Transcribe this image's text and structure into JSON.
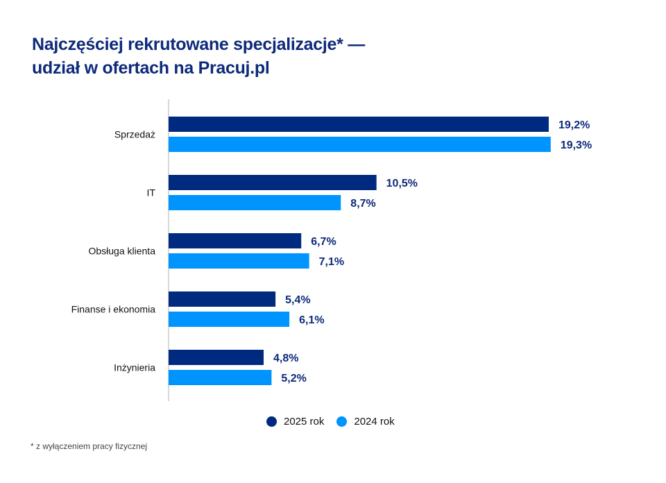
{
  "title_line1": "Najczęściej rekrutowane specjalizacje* —",
  "title_line2": "udział w ofertach na Pracuj.pl",
  "footnote": "* z wyłączeniem pracy fizycznej",
  "chart_data": {
    "type": "bar",
    "orientation": "horizontal",
    "title": "Najczęściej rekrutowane specjalizacje* — udział w ofertach na Pracuj.pl",
    "categories": [
      "Sprzedaż",
      "IT",
      "Obsługa klienta",
      "Finanse i ekonomia",
      "Inżynieria"
    ],
    "series": [
      {
        "name": "2025 rok",
        "color": "#002a80",
        "values": [
          19.2,
          10.5,
          6.7,
          5.4,
          4.8
        ],
        "labels": [
          "19,2%",
          "10,5%",
          "6,7%",
          "5,4%",
          "4,8%"
        ]
      },
      {
        "name": "2024 rok",
        "color": "#0094ff",
        "values": [
          19.3,
          8.7,
          7.1,
          6.1,
          5.2
        ],
        "labels": [
          "19,3%",
          "8,7%",
          "7,1%",
          "6,1%",
          "5,2%"
        ]
      }
    ],
    "unit": "%",
    "xlim": [
      0,
      25
    ],
    "grid": false,
    "legend_position": "bottom"
  }
}
